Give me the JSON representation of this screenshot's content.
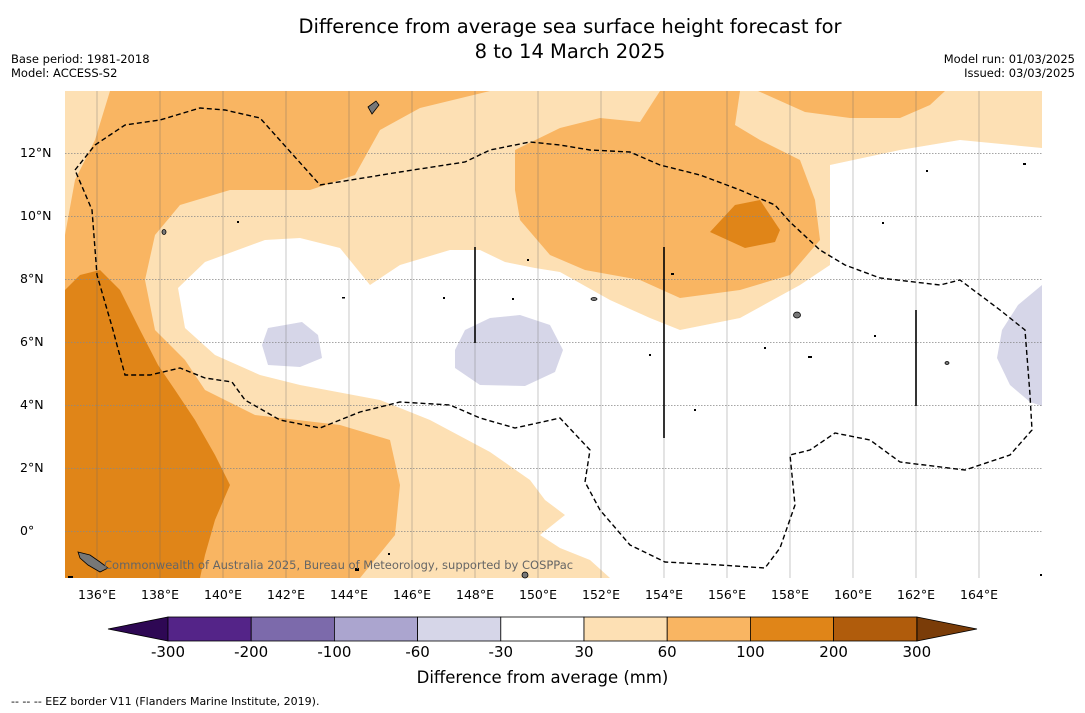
{
  "title_line1": "Difference from average sea surface height forecast for",
  "title_line2": "8 to 14 March 2025",
  "base_period": "Base period: 1981-2018",
  "model": "Model: ACCESS-S2",
  "model_run": "Model run: 01/03/2025",
  "issued": "Issued: 03/03/2025",
  "credit": "Commonwealth of Australia 2025, Bureau of Meteorology, supported by COSPPac",
  "footnote": "--  --  -- EEZ border V11 (Flanders Marine Institute, 2019).",
  "x_ticks": [
    "136°E",
    "138°E",
    "140°E",
    "142°E",
    "144°E",
    "146°E",
    "148°E",
    "150°E",
    "152°E",
    "154°E",
    "156°E",
    "158°E",
    "160°E",
    "162°E",
    "164°E"
  ],
  "y_ticks": [
    "12°N",
    "10°N",
    "8°N",
    "6°N",
    "4°N",
    "2°N",
    "0°"
  ],
  "colorbar": {
    "title": "Difference from average (mm)",
    "labels": [
      "-300",
      "-200",
      "-100",
      "-60",
      "-30",
      "30",
      "60",
      "100",
      "200",
      "300"
    ],
    "colors": [
      "#2e0854",
      "#542488",
      "#7c6aab",
      "#aba5cf",
      "#d6d6e8",
      "#ffffff",
      "#fde0b4",
      "#f9b562",
      "#e08518",
      "#b05c0c",
      "#7a3c08"
    ]
  }
}
